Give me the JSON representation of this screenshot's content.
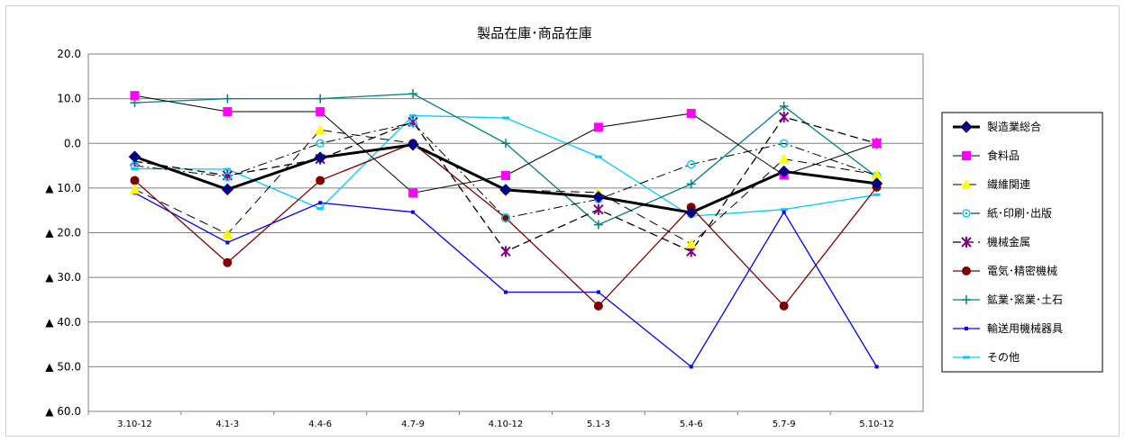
{
  "chart_data": {
    "type": "line",
    "title": "製品在庫･商品在庫",
    "xlabel": "",
    "ylabel": "",
    "categories": [
      "3.10-12",
      "4.1-3",
      "4.4-6",
      "4.7-9",
      "4.10-12",
      "5.1-3",
      "5.4-6",
      "5.7-9",
      "5.10-12"
    ],
    "ylim": [
      -60,
      20
    ],
    "yticks": [
      20,
      10,
      0,
      -10,
      -20,
      -30,
      -40,
      -50,
      -60
    ],
    "ytick_labels": [
      "20.0",
      "10.0",
      "0.0",
      "▲ 10.0",
      "▲ 20.0",
      "▲ 30.0",
      "▲ 40.0",
      "▲ 50.0",
      "▲ 60.0"
    ],
    "grid": true,
    "legend_position": "right",
    "series": [
      {
        "name": "製造業総合",
        "color": "#000000",
        "dash": "",
        "width": 3,
        "marker": "diamond",
        "marker_color": "#000080",
        "values": [
          -3.0,
          -10.3,
          -3.2,
          -0.3,
          -10.4,
          -12.0,
          -15.5,
          -6.3,
          -9.0
        ]
      },
      {
        "name": "食料品",
        "color": "#000000",
        "dash": "",
        "width": 1,
        "marker": "square",
        "marker_color": "#ff00ff",
        "values": [
          10.7,
          7.1,
          7.1,
          -11.1,
          -7.2,
          3.6,
          6.7,
          -7.1,
          0.0
        ]
      },
      {
        "name": "繊維関連",
        "color": "#000000",
        "dash": "10,6",
        "width": 1,
        "marker": "triangle",
        "marker_color": "#ffff00",
        "values": [
          -10.3,
          -20.3,
          3.0,
          0.0,
          -10.4,
          -11.0,
          -22.5,
          -3.5,
          -7.0
        ]
      },
      {
        "name": "紙･印刷･出版",
        "color": "#000000",
        "dash": "10,4,2,4",
        "width": 1,
        "marker": "circle-open",
        "marker_color": "#00ccff",
        "values": [
          -5.0,
          -7.5,
          0.0,
          4.6,
          -16.7,
          -12.5,
          -4.7,
          0.0,
          -7.2
        ]
      },
      {
        "name": "機械金属",
        "color": "#000000",
        "dash": "9,5",
        "width": 1.3,
        "marker": "asterisk",
        "marker_color": "#800080",
        "values": [
          -4.0,
          -7.2,
          -3.5,
          4.8,
          -24.2,
          -14.8,
          -24.2,
          5.9,
          0.0
        ]
      },
      {
        "name": "電気･精密機械",
        "color": "#800000",
        "dash": "",
        "width": 1.3,
        "marker": "circle",
        "marker_color": "#800000",
        "values": [
          -8.3,
          -26.7,
          -8.3,
          0.0,
          -16.7,
          -36.4,
          -14.3,
          -36.4,
          -9.8
        ]
      },
      {
        "name": "鉱業･窯業･土石",
        "color": "#008080",
        "dash": "",
        "width": 1.3,
        "marker": "plus",
        "marker_color": "#008080",
        "values": [
          9.1,
          10.0,
          10.0,
          11.1,
          0.0,
          -18.2,
          -9.1,
          8.3,
          -7.5
        ]
      },
      {
        "name": "輸送用機械器具",
        "color": "#0000ff",
        "dash": "",
        "width": 1.3,
        "marker": "dot",
        "marker_color": "#0000ff",
        "values": [
          -11.1,
          -22.2,
          -13.3,
          -15.4,
          -33.3,
          -33.3,
          -50.0,
          -15.4,
          -50.0
        ]
      },
      {
        "name": "その他",
        "color": "#00ccff",
        "dash": "",
        "width": 1.3,
        "marker": "dash",
        "marker_color": "#00ccff",
        "values": [
          -5.7,
          -5.8,
          -14.6,
          6.2,
          5.7,
          -3.0,
          -16.3,
          -14.8,
          -11.5
        ]
      }
    ]
  }
}
